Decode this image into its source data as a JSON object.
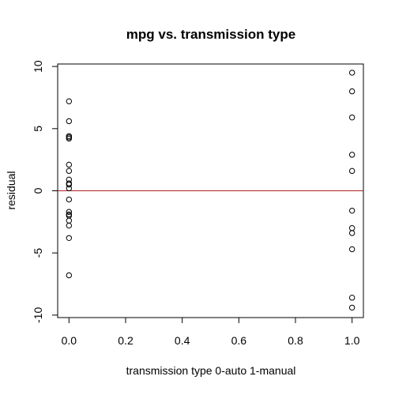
{
  "chart_data": {
    "type": "scatter",
    "title": "mpg vs. transmission type",
    "xlabel": "transmission type 0-auto 1-manual",
    "ylabel": "residual",
    "xlim": [
      -0.04,
      1.04
    ],
    "ylim": [
      -10.2,
      10.2
    ],
    "xticks": [
      0.0,
      0.2,
      0.4,
      0.6,
      0.8,
      1.0
    ],
    "xtick_labels": [
      "0.0",
      "0.2",
      "0.4",
      "0.6",
      "0.8",
      "1.0"
    ],
    "yticks": [
      -10,
      -5,
      0,
      5,
      10
    ],
    "ytick_labels": [
      "-10",
      "-5",
      "0",
      "5",
      "10"
    ],
    "grid": false,
    "reference_line": {
      "y": 0,
      "color": "#b22222"
    },
    "points": [
      {
        "x": 0,
        "y": 7.2
      },
      {
        "x": 0,
        "y": 5.6
      },
      {
        "x": 0,
        "y": 4.3
      },
      {
        "x": 0,
        "y": 4.2
      },
      {
        "x": 0,
        "y": 2.1
      },
      {
        "x": 0,
        "y": 1.6
      },
      {
        "x": 0,
        "y": 0.9
      },
      {
        "x": 0,
        "y": 0.6
      },
      {
        "x": 0,
        "y": 0.2
      },
      {
        "x": 0,
        "y": -0.7
      },
      {
        "x": 0,
        "y": -1.7
      },
      {
        "x": 0,
        "y": -2.0
      },
      {
        "x": 0,
        "y": -2.4
      },
      {
        "x": 0,
        "y": -2.8
      },
      {
        "x": 0,
        "y": -3.8
      },
      {
        "x": 0,
        "y": -6.8
      },
      {
        "x": 0,
        "y": 4.4
      },
      {
        "x": 0,
        "y": 0.5
      },
      {
        "x": 0,
        "y": -1.9
      },
      {
        "x": 1,
        "y": 9.5
      },
      {
        "x": 1,
        "y": 8.0
      },
      {
        "x": 1,
        "y": 5.9
      },
      {
        "x": 1,
        "y": 2.9
      },
      {
        "x": 1,
        "y": 1.6
      },
      {
        "x": 1,
        "y": -1.6
      },
      {
        "x": 1,
        "y": -3.0
      },
      {
        "x": 1,
        "y": -3.4
      },
      {
        "x": 1,
        "y": -4.7
      },
      {
        "x": 1,
        "y": -8.6
      },
      {
        "x": 1,
        "y": -9.4
      }
    ]
  }
}
